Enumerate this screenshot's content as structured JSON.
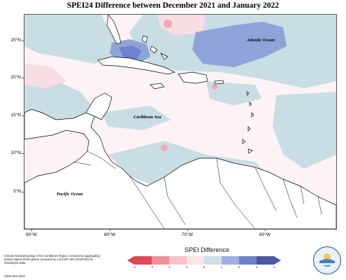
{
  "title": "SPEI24 Difference between December 2021 and January 2022",
  "labels": {
    "atlantic": "Atlantic Ocean",
    "caribbean": "Caribbean Sea",
    "pacific": "Pacific Ocean"
  },
  "lat_ticks": [
    "25°N",
    "20°N",
    "15°N",
    "10°N",
    "5°N"
  ],
  "lon_ticks": [
    "90°W",
    "80°W",
    "70°W",
    "60°W"
  ],
  "legend": {
    "title": "SPEI Difference",
    "ticks": [
      "-4",
      "-3",
      "-2",
      "-1",
      "0",
      "1",
      "2",
      "3",
      "4"
    ],
    "colors": [
      "#e04a56",
      "#ef8f98",
      "#f6c3c9",
      "#fbe3e6",
      "#cfe0e6",
      "#9db0e0",
      "#6f82cf",
      "#4a5a9e"
    ]
  },
  "footnote": "Climate Monitoring Map of the Caribbean Region. Created by aggregating station based observations, provided by CariCOF, with NCEP/NCAR Reanalysis Data.",
  "credit": "CIMH Mar-2022",
  "logo_text": "CIMH"
}
